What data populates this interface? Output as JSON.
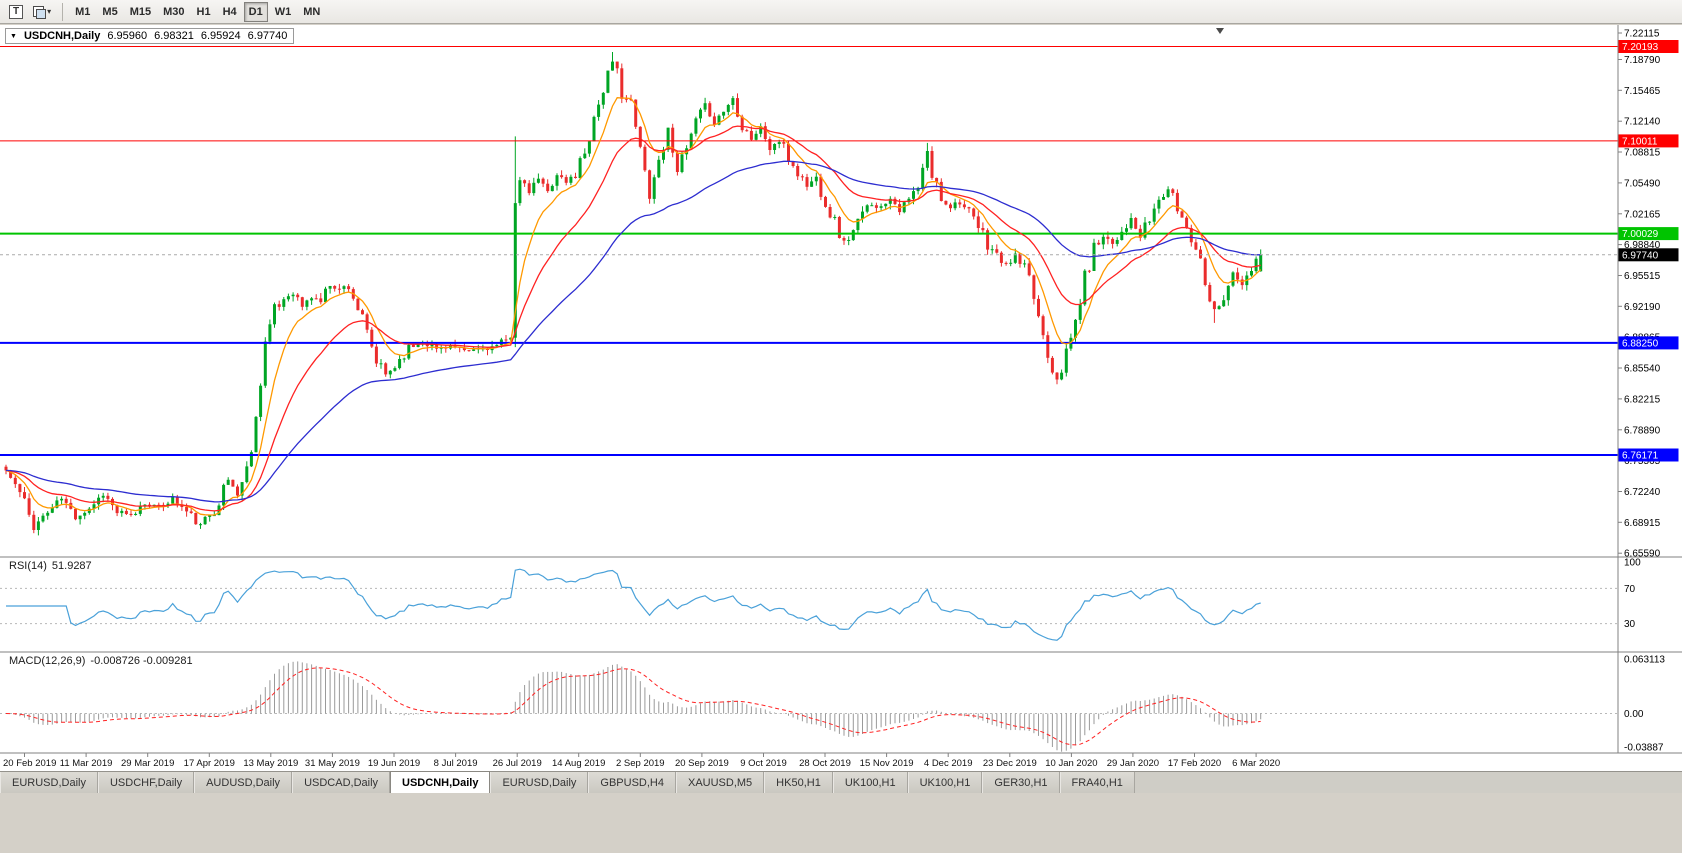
{
  "toolbar": {
    "chart_icon_glyph": "T",
    "dropdown_glyph": "▾",
    "timeframes": [
      "M1",
      "M5",
      "M15",
      "M30",
      "H1",
      "H4",
      "D1",
      "W1",
      "MN"
    ],
    "active_timeframe": "D1"
  },
  "chart": {
    "collapse_glyph": "▼",
    "symbol": "USDCNH,Daily",
    "open": "6.95960",
    "high": "6.98321",
    "low": "6.95924",
    "close": "6.97740"
  },
  "tabs": {
    "items": [
      {
        "label": "EURUSD,Daily",
        "active": false
      },
      {
        "label": "USDCHF,Daily",
        "active": false
      },
      {
        "label": "AUDUSD,Daily",
        "active": false
      },
      {
        "label": "USDCAD,Daily",
        "active": false
      },
      {
        "label": "USDCNH,Daily",
        "active": true
      },
      {
        "label": "EURUSD,Daily",
        "active": false
      },
      {
        "label": "GBPUSD,H4",
        "active": false
      },
      {
        "label": "XAUUSD,M5",
        "active": false
      },
      {
        "label": "HK50,H1",
        "active": false
      },
      {
        "label": "UK100,H1",
        "active": false
      },
      {
        "label": "UK100,H1",
        "active": false
      },
      {
        "label": "GER30,H1",
        "active": false
      },
      {
        "label": "FRA40,H1",
        "active": false
      }
    ]
  },
  "chart_data": {
    "type": "candlestick",
    "symbol": "USDCNH",
    "timeframe": "Daily",
    "title": "USDCNH,Daily 6.95960 6.98321 6.95924 6.97740",
    "n_candles": 272,
    "x_labels": [
      "20 Feb 2019",
      "11 Mar 2019",
      "29 Mar 2019",
      "17 Apr 2019",
      "13 May 2019",
      "31 May 2019",
      "19 Jun 2019",
      "8 Jul 2019",
      "26 Jul 2019",
      "14 Aug 2019",
      "2 Sep 2019",
      "20 Sep 2019",
      "9 Oct 2019",
      "28 Oct 2019",
      "15 Nov 2019",
      "4 Dec 2019",
      "23 Dec 2019",
      "10 Jan 2020",
      "29 Jan 2020",
      "17 Feb 2020",
      "6 Mar 2020"
    ],
    "y_axis_ticks": [
      "7.22115",
      "7.18790",
      "7.15465",
      "7.12140",
      "7.08815",
      "7.05490",
      "7.02165",
      "6.98840",
      "6.95515",
      "6.92190",
      "6.88865",
      "6.85540",
      "6.82215",
      "6.78890",
      "6.75565",
      "6.72240",
      "6.68915",
      "6.65590"
    ],
    "ylim": [
      6.648,
      7.223
    ],
    "grid": false,
    "ohlc_last": {
      "open": 6.9596,
      "high": 6.98321,
      "low": 6.95924,
      "close": 6.9774
    },
    "price_path_anchors": [
      [
        0,
        6.745
      ],
      [
        3,
        6.72
      ],
      [
        6,
        6.685
      ],
      [
        9,
        6.7
      ],
      [
        12,
        6.715
      ],
      [
        15,
        6.695
      ],
      [
        18,
        6.705
      ],
      [
        21,
        6.72
      ],
      [
        24,
        6.7
      ],
      [
        27,
        6.695
      ],
      [
        30,
        6.71
      ],
      [
        33,
        6.705
      ],
      [
        36,
        6.715
      ],
      [
        39,
        6.7
      ],
      [
        42,
        6.685
      ],
      [
        45,
        6.705
      ],
      [
        48,
        6.735
      ],
      [
        50,
        6.72
      ],
      [
        52,
        6.745
      ],
      [
        54,
        6.8
      ],
      [
        55,
        6.845
      ],
      [
        56,
        6.885
      ],
      [
        58,
        6.915
      ],
      [
        60,
        6.93
      ],
      [
        62,
        6.938
      ],
      [
        64,
        6.922
      ],
      [
        66,
        6.932
      ],
      [
        68,
        6.928
      ],
      [
        70,
        6.947
      ],
      [
        72,
        6.94
      ],
      [
        74,
        6.945
      ],
      [
        76,
        6.92
      ],
      [
        78,
        6.89
      ],
      [
        80,
        6.862
      ],
      [
        82,
        6.848
      ],
      [
        84,
        6.858
      ],
      [
        86,
        6.872
      ],
      [
        88,
        6.88
      ],
      [
        90,
        6.885
      ],
      [
        93,
        6.876
      ],
      [
        96,
        6.88
      ],
      [
        99,
        6.872
      ],
      [
        102,
        6.876
      ],
      [
        105,
        6.878
      ],
      [
        108,
        6.882
      ],
      [
        109,
        6.895
      ],
      [
        110,
        7.04
      ],
      [
        111,
        7.055
      ],
      [
        113,
        7.045
      ],
      [
        115,
        7.06
      ],
      [
        117,
        7.045
      ],
      [
        119,
        7.065
      ],
      [
        121,
        7.055
      ],
      [
        123,
        7.065
      ],
      [
        125,
        7.09
      ],
      [
        127,
        7.125
      ],
      [
        129,
        7.158
      ],
      [
        131,
        7.183
      ],
      [
        132,
        7.175
      ],
      [
        133,
        7.155
      ],
      [
        135,
        7.138
      ],
      [
        137,
        7.09
      ],
      [
        139,
        7.042
      ],
      [
        141,
        7.08
      ],
      [
        143,
        7.112
      ],
      [
        145,
        7.072
      ],
      [
        147,
        7.09
      ],
      [
        149,
        7.118
      ],
      [
        151,
        7.138
      ],
      [
        153,
        7.12
      ],
      [
        155,
        7.133
      ],
      [
        157,
        7.146
      ],
      [
        159,
        7.12
      ],
      [
        161,
        7.103
      ],
      [
        163,
        7.114
      ],
      [
        165,
        7.092
      ],
      [
        167,
        7.1
      ],
      [
        169,
        7.082
      ],
      [
        171,
        7.066
      ],
      [
        173,
        7.052
      ],
      [
        175,
        7.06
      ],
      [
        177,
        7.036
      ],
      [
        179,
        7.012
      ],
      [
        181,
        6.99
      ],
      [
        183,
        7.002
      ],
      [
        185,
        7.02
      ],
      [
        187,
        7.034
      ],
      [
        189,
        7.028
      ],
      [
        191,
        7.04
      ],
      [
        193,
        7.026
      ],
      [
        195,
        7.036
      ],
      [
        197,
        7.048
      ],
      [
        199,
        7.088
      ],
      [
        200,
        7.062
      ],
      [
        202,
        7.04
      ],
      [
        204,
        7.03
      ],
      [
        206,
        7.036
      ],
      [
        208,
        7.02
      ],
      [
        210,
        7.006
      ],
      [
        212,
        6.99
      ],
      [
        214,
        6.976
      ],
      [
        216,
        6.966
      ],
      [
        218,
        6.976
      ],
      [
        220,
        6.96
      ],
      [
        222,
        6.932
      ],
      [
        224,
        6.892
      ],
      [
        226,
        6.856
      ],
      [
        227,
        6.846
      ],
      [
        229,
        6.868
      ],
      [
        231,
        6.906
      ],
      [
        233,
        6.952
      ],
      [
        235,
        6.984
      ],
      [
        237,
        7.0
      ],
      [
        239,
        6.99
      ],
      [
        241,
        7.004
      ],
      [
        243,
        7.014
      ],
      [
        245,
        6.996
      ],
      [
        247,
        7.016
      ],
      [
        249,
        7.036
      ],
      [
        251,
        7.048
      ],
      [
        253,
        7.028
      ],
      [
        255,
        7.008
      ],
      [
        257,
        6.988
      ],
      [
        259,
        6.954
      ],
      [
        261,
        6.916
      ],
      [
        263,
        6.934
      ],
      [
        265,
        6.956
      ],
      [
        267,
        6.944
      ],
      [
        269,
        6.962
      ],
      [
        271,
        6.9774
      ]
    ],
    "wick_overrides": {
      "110": {
        "high": 7.105,
        "low": 6.878
      },
      "131": {
        "high": 7.196
      },
      "199": {
        "high": 7.098
      },
      "227": {
        "low": 6.838
      },
      "261": {
        "low": 6.904
      }
    },
    "levels": [
      {
        "price": 7.20193,
        "label": "7.20193",
        "color": "#ff0000",
        "width": 1
      },
      {
        "price": 7.10011,
        "label": "7.10011",
        "color": "#ff0000",
        "width": 1
      },
      {
        "price": 7.00029,
        "label": "7.00029",
        "color": "#00c400",
        "width": 2
      },
      {
        "price": 6.8825,
        "label": "6.88250",
        "color": "#0000ff",
        "width": 2
      },
      {
        "price": 6.76171,
        "label": "6.76171",
        "color": "#0000ff",
        "width": 2
      }
    ],
    "current_price": {
      "value": 6.9774,
      "label": "6.97740",
      "badge_color": "#000000"
    },
    "moving_averages": [
      {
        "period": 8,
        "type": "ema",
        "color": "#ff9900"
      },
      {
        "period": 21,
        "type": "ema",
        "color": "#ff2222"
      },
      {
        "period": 55,
        "type": "ema",
        "color": "#2d2dd0"
      }
    ],
    "indicators": [
      {
        "name": "RSI",
        "label": "RSI(14)",
        "value": "51.9287",
        "levels": [
          100,
          70,
          30
        ],
        "color": "#4aa1d9"
      },
      {
        "name": "MACD",
        "label": "MACD(12,26,9)",
        "values_text": "-0.008726 -0.009281",
        "axis_labels": [
          "0.063113",
          "0.00",
          "-0.03887"
        ],
        "histogram_color": "#9a9a9a",
        "signal_color": "#ff2222"
      }
    ],
    "colors": {
      "up": "#00a524",
      "down": "#ea2c2c",
      "bid_line": "#aaaaaa",
      "axis_line": "#808080"
    }
  }
}
